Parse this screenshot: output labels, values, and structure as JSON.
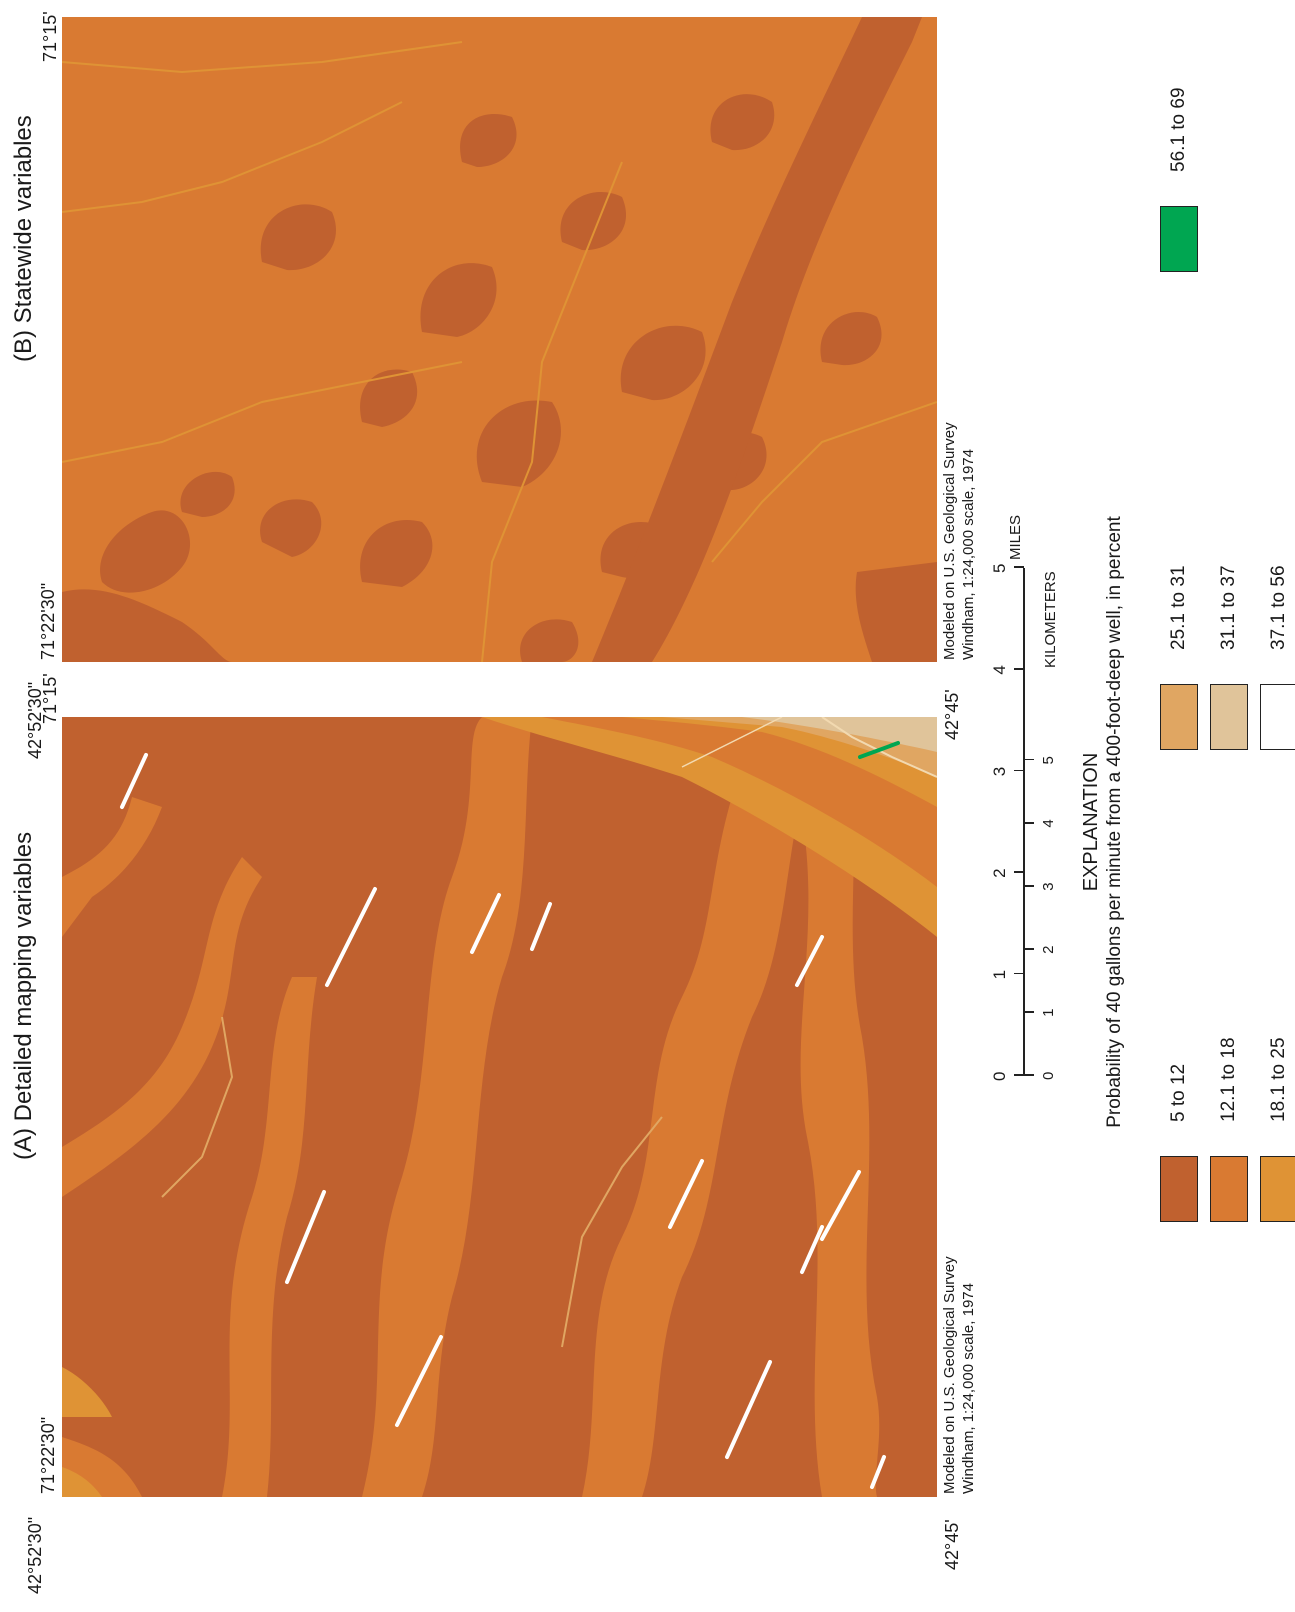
{
  "panels": [
    {
      "id": "A",
      "title": "(A) Detailed mapping variables",
      "corner_sw_lat": "42°52'30\"",
      "corner_sw_lon": "71°22'30\"",
      "corner_se_lat": "42°45'",
      "corner_nw_lon": "71°15'",
      "credit_line1": "Modeled on U.S. Geological Survey",
      "credit_line2": "Windham, 1:24,000 scale, 1974"
    },
    {
      "id": "B",
      "title": "(B) Statewide variables",
      "corner_sw_lat": "42°52'30\"",
      "corner_sw_lon": "71°22'30\"",
      "corner_se_lat": "42°45'",
      "corner_nw_lon": "71°15'",
      "credit_line1": "Modeled on U.S. Geological Survey",
      "credit_line2": "Windham, 1:24,000 scale, 1974"
    }
  ],
  "scale_bar": {
    "miles_ticks": [
      "0",
      "1",
      "2",
      "3",
      "4",
      "5"
    ],
    "miles_label": "MILES",
    "km_ticks": [
      "0",
      "1",
      "2",
      "3",
      "4",
      "5"
    ],
    "km_label": "KILOMETERS"
  },
  "explanation": {
    "title": "EXPLANATION",
    "subtitle": "Probability of 40 gallons per minute from a 400-foot-deep well, in percent",
    "classes": [
      {
        "label": "5 to 12",
        "color": "#c0612f"
      },
      {
        "label": "12.1 to 18",
        "color": "#d97a32"
      },
      {
        "label": "18.1 to 25",
        "color": "#df9335"
      },
      {
        "label": "25.1 to 31",
        "color": "#e0a662"
      },
      {
        "label": "31.1 to 37",
        "color": "#e0c49a"
      },
      {
        "label": "37.1 to 56",
        "color": "#ffffff"
      },
      {
        "label": "56.1 to 69",
        "color": "#00a651"
      }
    ]
  }
}
